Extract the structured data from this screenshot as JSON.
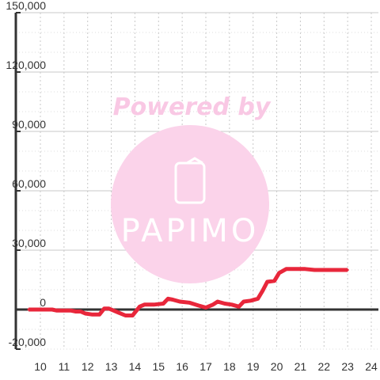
{
  "watermark": {
    "text_top": "Powered by",
    "logo_text": "PAPIMO",
    "color": "#fbd3ea",
    "text_color": "#f9c8e4"
  },
  "colors": {
    "series": "#e8273b",
    "axis": "#333333"
  },
  "chart_data": {
    "type": "line",
    "title": "",
    "xlabel": "",
    "ylabel": "",
    "xlim": [
      9.5,
      24.3
    ],
    "ylim": [
      -20000,
      150000
    ],
    "x_ticks": [
      10,
      11,
      12,
      13,
      14,
      15,
      16,
      17,
      18,
      19,
      20,
      21,
      22,
      23,
      24
    ],
    "y_ticks": [
      -20000,
      0,
      30000,
      60000,
      90000,
      120000,
      150000
    ],
    "y_tick_labels": [
      "-20,000",
      "0",
      "30,000",
      "60,000",
      "90,000",
      "120,000",
      "150,000"
    ],
    "grid": true,
    "legend": "none",
    "series": [
      {
        "color": "#e8273b",
        "points": [
          [
            9.5,
            0
          ],
          [
            10.0,
            0
          ],
          [
            10.5,
            0
          ],
          [
            10.7,
            -500
          ],
          [
            11.0,
            -500
          ],
          [
            11.3,
            -500
          ],
          [
            11.5,
            -1000
          ],
          [
            11.7,
            -1000
          ],
          [
            11.9,
            -2000
          ],
          [
            12.2,
            -2500
          ],
          [
            12.5,
            -2500
          ],
          [
            12.7,
            500
          ],
          [
            12.9,
            500
          ],
          [
            13.1,
            -500
          ],
          [
            13.3,
            -1500
          ],
          [
            13.6,
            -3000
          ],
          [
            13.9,
            -3000
          ],
          [
            14.2,
            1500
          ],
          [
            14.4,
            2500
          ],
          [
            14.8,
            2500
          ],
          [
            15.2,
            3000
          ],
          [
            15.4,
            5500
          ],
          [
            15.6,
            5000
          ],
          [
            15.9,
            4000
          ],
          [
            16.3,
            3500
          ],
          [
            16.7,
            2000
          ],
          [
            17.0,
            1000
          ],
          [
            17.3,
            2500
          ],
          [
            17.5,
            4000
          ],
          [
            17.8,
            3000
          ],
          [
            18.1,
            2500
          ],
          [
            18.4,
            1500
          ],
          [
            18.6,
            4000
          ],
          [
            18.9,
            4500
          ],
          [
            19.2,
            5500
          ],
          [
            19.4,
            9500
          ],
          [
            19.6,
            14000
          ],
          [
            19.9,
            14500
          ],
          [
            20.1,
            18500
          ],
          [
            20.4,
            20500
          ],
          [
            20.7,
            20500
          ],
          [
            21.2,
            20500
          ],
          [
            21.6,
            20000
          ],
          [
            22.2,
            20000
          ],
          [
            23.0,
            20000
          ]
        ]
      }
    ]
  }
}
